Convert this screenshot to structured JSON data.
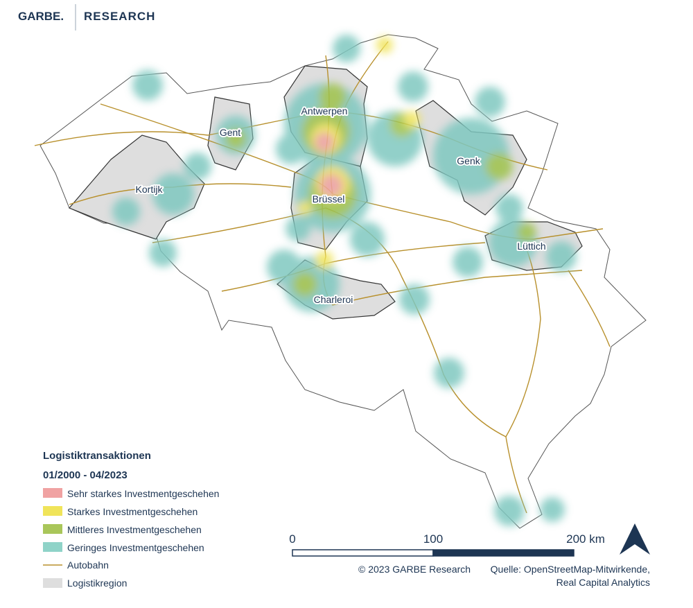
{
  "header": {
    "brand": "GARBE.",
    "section": "RESEARCH"
  },
  "cities": [
    {
      "label": "Antwerpen"
    },
    {
      "label": "Gent"
    },
    {
      "label": "Kortijk"
    },
    {
      "label": "Brüssel"
    },
    {
      "label": "Genk"
    },
    {
      "label": "Lüttich"
    },
    {
      "label": "Charleroi"
    }
  ],
  "legend": {
    "title": "Logistiktransaktionen",
    "period": "01/2000 - 04/2023",
    "items": [
      {
        "label": "Sehr starkes Investmentgeschehen"
      },
      {
        "label": "Starkes Investmentgeschehen"
      },
      {
        "label": "Mittleres Investmentgeschehen"
      },
      {
        "label": "Geringes Investmentgeschehen"
      },
      {
        "label": "Autobahn"
      },
      {
        "label": "Logistikregion"
      }
    ]
  },
  "scale": {
    "labels": [
      "0",
      "100",
      "200 km"
    ]
  },
  "credits": {
    "copyright": "© 2023 GARBE Research",
    "source": "Quelle: OpenStreetMap-Mitwirkende,",
    "source_2": "Real Capital Analytics"
  }
}
